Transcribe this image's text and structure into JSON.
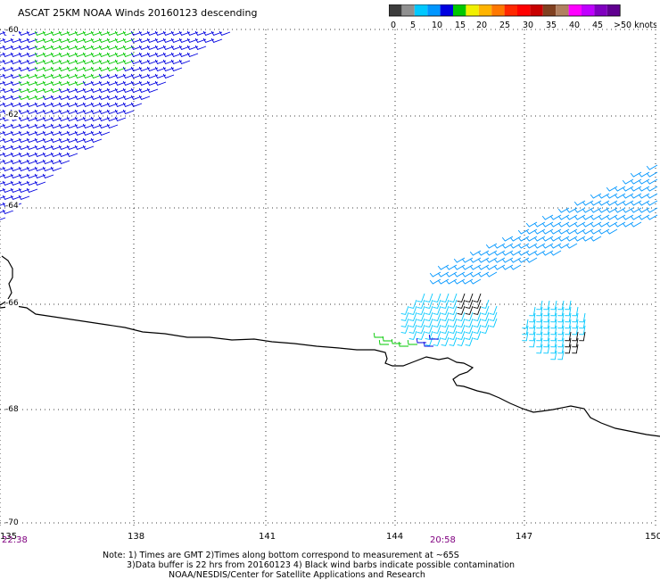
{
  "title": "ASCAT 25KM NOAA Winds 20160123 descending",
  "legend": {
    "labels": [
      "0",
      "5",
      "10",
      "15",
      "20",
      "25",
      "30",
      "35",
      "40",
      "45",
      ">50 knots"
    ],
    "colors": [
      "#3c3c3c",
      "#909090",
      "#00c8ff",
      "#0096ff",
      "#0000e0",
      "#00c800",
      "#f0f000",
      "#ffb400",
      "#ff7800",
      "#ff2800",
      "#ff0000",
      "#c80000",
      "#804020",
      "#b08060",
      "#ff00ff",
      "#c000ff",
      "#8000c0",
      "#600090"
    ]
  },
  "lat_labels": [
    "-60",
    "-62",
    "-64",
    "-66",
    "-68",
    "-70"
  ],
  "lon_labels": [
    "135",
    "138",
    "141",
    "144",
    "147",
    "150"
  ],
  "times": {
    "left": "22:38",
    "mid": "20:58"
  },
  "notes": [
    "Note: 1) Times are GMT 2)Times along bottom correspond to measurement at ~65S",
    "3)Data buffer is 22 hrs from 20160123 4) Black wind barbs indicate possible contamination",
    "NOAA/NESDIS/Center for Satellite Applications and Research"
  ],
  "map_colors": {
    "green": "#00c800",
    "blue": "#0000e0",
    "cyan": "#00c8ff",
    "sky": "#0096ff",
    "black": "#000000",
    "coast": "#000000",
    "grid": "#000000"
  }
}
